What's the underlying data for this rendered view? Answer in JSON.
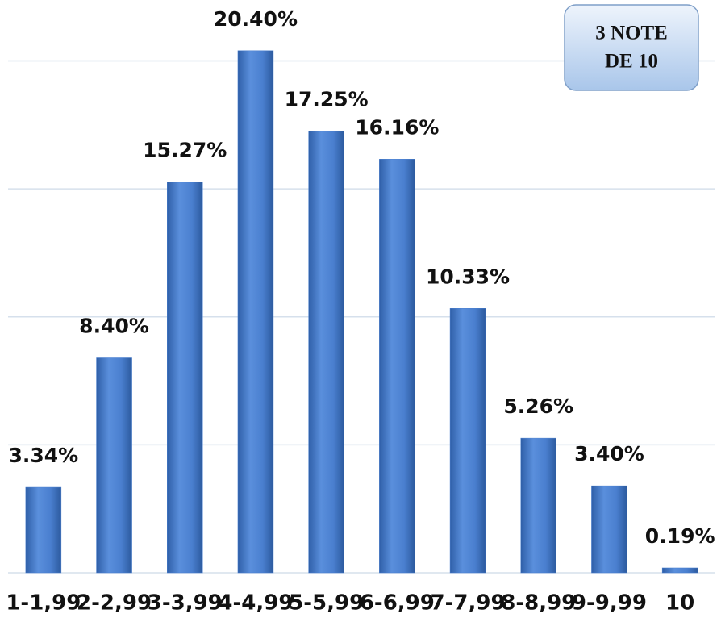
{
  "chart_data": {
    "type": "bar",
    "categories": [
      "1-1,99",
      "2-2,99",
      "3-3,99",
      "4-4,99",
      "5-5,99",
      "6-6,99",
      "7-7,99",
      "8-8,99",
      "9-9,99",
      "10"
    ],
    "values": [
      3.34,
      8.4,
      15.27,
      20.4,
      17.25,
      16.16,
      10.33,
      5.26,
      3.4,
      0.19
    ],
    "value_labels": [
      "3.34%",
      "8.40%",
      "15.27%",
      "20.40%",
      "17.25%",
      "16.16%",
      "10.33%",
      "5.26%",
      "3.40%",
      "0.19%"
    ],
    "color": "#4a7fcf",
    "ylim": [
      0,
      22
    ],
    "yticks": [
      0,
      5,
      10,
      15,
      20
    ],
    "grid": true,
    "annotation": [
      "3  NOTE",
      "DE 10"
    ]
  }
}
